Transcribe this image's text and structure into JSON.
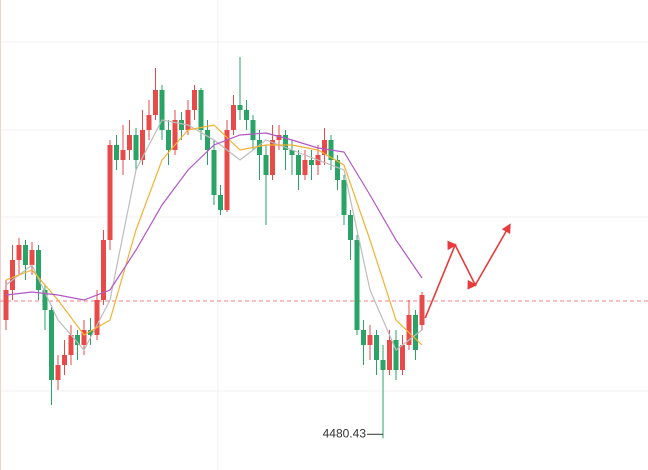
{
  "chart_data": {
    "type": "candlestick",
    "ylim": [
      4590,
      4472.5
    ],
    "up_color": "#e84a4a",
    "down_color": "#2aa366",
    "open": [
      4510,
      4517.5,
      4525,
      4528.75,
      4523.75,
      4527.5,
      4517.5,
      4512.5,
      4495,
      4498.75,
      4501.25,
      4506.25,
      4503.75,
      4507.5,
      4506.25,
      4515,
      4530,
      4553.75,
      4550,
      4552.5,
      4556.25,
      4550,
      4557.5,
      4561.25,
      4567.5,
      4557.5,
      4552.5,
      4560,
      4557.5,
      4562.5,
      4567.5,
      4557.5,
      4552.5,
      4541.25,
      4537.5,
      4557.5,
      4563.75,
      4562.5,
      4560,
      4555,
      4551.25,
      4546.25,
      4555,
      4556.25,
      4552.5,
      4551.25,
      4546.25,
      4550,
      4548.75,
      4551.25,
      4555,
      4550,
      4545,
      4536.25,
      4530,
      4507.5,
      4503.75,
      4506.25,
      4500,
      4497.5,
      4505,
      4497.5,
      4503.75,
      4511.25,
      4508.75
    ],
    "high": [
      4520,
      4528.75,
      4530.5,
      4530,
      4529.5,
      4528.75,
      4518.75,
      4513.75,
      4501.25,
      4505,
      4508.75,
      4507.5,
      4510,
      4510.5,
      4517.5,
      4532.5,
      4555,
      4556.25,
      4558.75,
      4560,
      4558,
      4562.5,
      4565,
      4573,
      4568.75,
      4560,
      4562.5,
      4562,
      4565,
      4568.75,
      4568,
      4560,
      4555,
      4543.75,
      4560,
      4566.25,
      4575.75,
      4565,
      4561.25,
      4557.5,
      4553.75,
      4558.75,
      4558.75,
      4557.5,
      4555,
      4552.5,
      4552.5,
      4552.5,
      4553.75,
      4558,
      4556.25,
      4551.25,
      4546.25,
      4537.5,
      4531.25,
      4510,
      4508.75,
      4507.5,
      4503.75,
      4507.5,
      4507.5,
      4506.25,
      4515,
      4512.5,
      4517
    ],
    "low": [
      4507.5,
      4515,
      4521.25,
      4520,
      4521.25,
      4515,
      4507.5,
      4488.75,
      4492.5,
      4496.25,
      4498.75,
      4500,
      4501.25,
      4503.75,
      4505,
      4513.75,
      4527.5,
      4547.5,
      4546.25,
      4550,
      4547.5,
      4548.75,
      4555,
      4560,
      4555,
      4548.75,
      4551.25,
      4555,
      4556.25,
      4560,
      4555,
      4548.75,
      4538.75,
      4536.25,
      4537,
      4556.25,
      4560,
      4557.5,
      4552.5,
      4545,
      4533.75,
      4545,
      4552.5,
      4547.5,
      4546.25,
      4542.5,
      4545,
      4545,
      4546.25,
      4548.75,
      4547.5,
      4542.5,
      4533.75,
      4525,
      4506.25,
      4498.75,
      4500,
      4496.25,
      4480.43,
      4496.25,
      4495,
      4496.25,
      4502.5,
      4500,
      4507.5
    ],
    "close": [
      4517.5,
      4525,
      4528.75,
      4523.75,
      4527.5,
      4517.5,
      4512.5,
      4495,
      4498.75,
      4501.25,
      4506.25,
      4503.75,
      4507.5,
      4506.25,
      4515,
      4530,
      4553.75,
      4550,
      4552.5,
      4556.25,
      4550,
      4557.5,
      4561.25,
      4567.5,
      4557.5,
      4552.5,
      4560,
      4557.5,
      4562.5,
      4567.5,
      4557.5,
      4552.5,
      4541.25,
      4537.5,
      4557.5,
      4563.75,
      4562.5,
      4560,
      4555,
      4551.25,
      4546.25,
      4555,
      4556.25,
      4552.5,
      4551.25,
      4546.25,
      4550,
      4548.75,
      4551.25,
      4555,
      4550,
      4545,
      4536.25,
      4530,
      4507.5,
      4503.75,
      4506.25,
      4500,
      4497.5,
      4505,
      4497.5,
      4503.75,
      4511.25,
      4502.5,
      4516.25
    ],
    "moving_averages": [
      {
        "color": "#bdbdbd",
        "x": [
          0,
          4,
          8,
          12,
          16,
          20,
          24,
          28,
          32,
          36,
          40,
          44,
          48,
          52,
          56,
          60,
          64
        ],
        "values": [
          4518.75,
          4523.75,
          4510,
          4502.5,
          4515,
          4547.5,
          4560,
          4558.75,
          4555,
          4550,
          4555,
          4552.5,
          4550,
          4547.5,
          4517.5,
          4502.5,
          4507.5
        ]
      },
      {
        "color": "#f2b233",
        "x": [
          0,
          4,
          8,
          12,
          16,
          20,
          24,
          28,
          32,
          36,
          40,
          44,
          48,
          52,
          56,
          60,
          64
        ],
        "values": [
          4520,
          4522.5,
          4515,
          4506.25,
          4510,
          4532.5,
          4550,
          4557.5,
          4558.75,
          4552.5,
          4553.75,
          4553.75,
          4552.5,
          4548.75,
          4530,
          4510,
          4503.75
        ]
      },
      {
        "color": "#b455c9",
        "x": [
          0,
          4,
          8,
          12,
          16,
          20,
          24,
          28,
          32,
          36,
          40,
          44,
          48,
          52,
          56,
          60,
          64
        ],
        "values": [
          4516.25,
          4517,
          4516.25,
          4515,
          4517.5,
          4527.5,
          4538.75,
          4547.5,
          4553.75,
          4556.25,
          4556.75,
          4555,
          4553,
          4552,
          4541.25,
          4530,
          4520.5
        ]
      }
    ],
    "reference_line": {
      "value": 4514.75,
      "color": "#f08080"
    },
    "forecast": {
      "color": "#e83a3a",
      "x": [
        64.5,
        69.1,
        72.2,
        77.5
      ],
      "values": [
        4510.5,
        4528.75,
        4518.75,
        4533.75
      ]
    },
    "low_annotation": "4480.43"
  }
}
